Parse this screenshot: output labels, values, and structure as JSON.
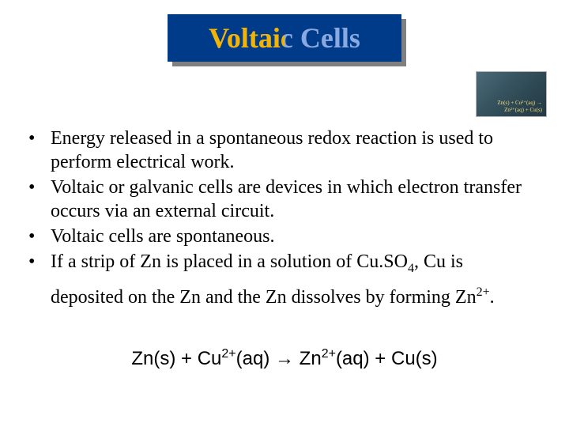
{
  "title": {
    "text": "Voltaic Cells",
    "box_bg": "#003b8a",
    "shadow_bg": "#808080",
    "left_color": "#f2b400",
    "right_color": "#8aa9e0",
    "fontsize": 36
  },
  "thumbnail": {
    "line1": "Zn(s) + Cu²⁺(aq) →",
    "line2": "Zn²⁺(aq) + Cu(s)",
    "bg_gradient_start": "#4a6b7a",
    "bg_gradient_end": "#223a44",
    "text_color": "#f4d97a"
  },
  "bullets": [
    "Energy released in a spontaneous redox reaction is used to perform electrical work.",
    "Voltaic or galvanic cells are devices in which electron transfer occurs via an external circuit.",
    "Voltaic cells are spontaneous.",
    "If a strip of Zn is placed in a solution of Cu.SO₄, Cu is deposited on the Zn and the Zn dissolves by forming Zn²⁺."
  ],
  "equation": {
    "lhs_species1": "Zn(s)",
    "lhs_species2_base": "Cu",
    "lhs_species2_charge": "2+",
    "lhs_species2_state": "(aq)",
    "arrow": "→",
    "rhs_species1_base": "Zn",
    "rhs_species1_charge": "2+",
    "rhs_species1_state": "(aq)",
    "rhs_species2": "Cu(s)"
  },
  "colors": {
    "page_bg": "#ffffff",
    "body_text": "#000000"
  },
  "typography": {
    "body_font": "Times New Roman",
    "equation_font": "Arial",
    "body_fontsize": 24,
    "sup_sub_fontsize": 16
  }
}
